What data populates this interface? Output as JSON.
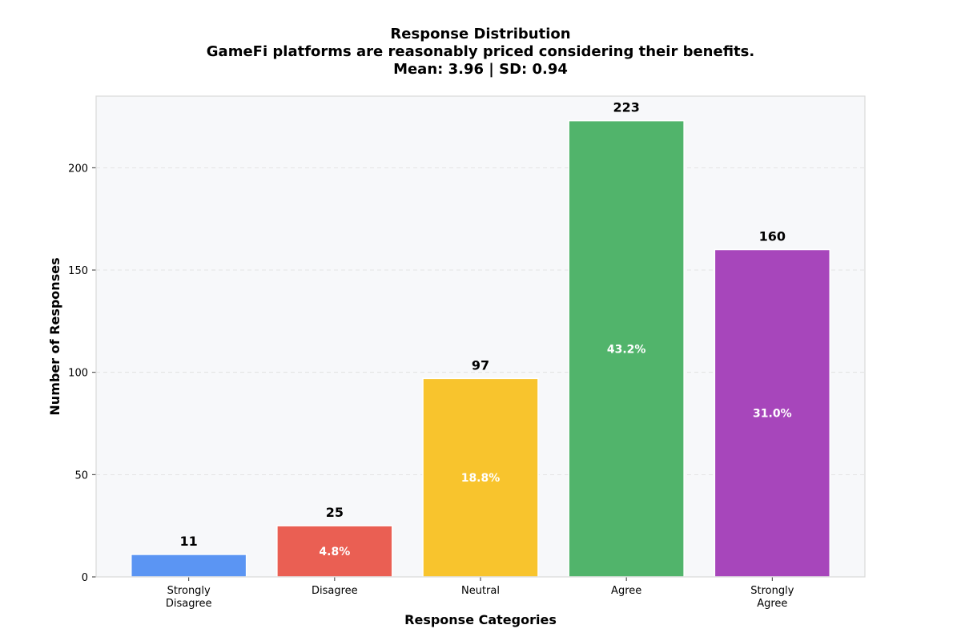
{
  "chart_data": {
    "type": "bar",
    "title": "Response Distribution",
    "subtitle": "GameFi platforms are reasonably priced considering their benefits.",
    "stats": "Mean: 3.96 | SD: 0.94",
    "xlabel": "Response Categories",
    "ylabel": "Number of Responses",
    "categories": [
      [
        "Strongly",
        "Disagree"
      ],
      [
        "Disagree"
      ],
      [
        "Neutral"
      ],
      [
        "Agree"
      ],
      [
        "Strongly",
        "Agree"
      ]
    ],
    "values": [
      11,
      25,
      97,
      223,
      160
    ],
    "percent_labels": [
      "",
      "4.8%",
      "18.8%",
      "43.2%",
      "31.0%"
    ],
    "colors": [
      "#5b95f3",
      "#ea5f53",
      "#f8c42d",
      "#51b46b",
      "#a746bb"
    ],
    "ylim": [
      0,
      235
    ],
    "yticks": [
      0,
      50,
      100,
      150,
      200
    ],
    "grid": true,
    "background": "#f7f8fa"
  }
}
